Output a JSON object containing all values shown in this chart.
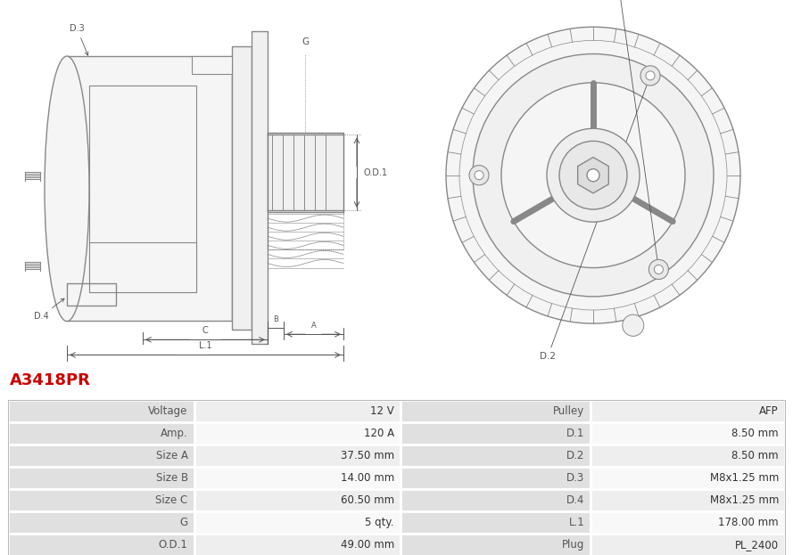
{
  "title": "A3418PR",
  "title_color": "#cc0000",
  "table_data": [
    [
      "Voltage",
      "12 V",
      "Pulley",
      "AFP"
    ],
    [
      "Amp.",
      "120 A",
      "D.1",
      "8.50 mm"
    ],
    [
      "Size A",
      "37.50 mm",
      "D.2",
      "8.50 mm"
    ],
    [
      "Size B",
      "14.00 mm",
      "D.3",
      "M8x1.25 mm"
    ],
    [
      "Size C",
      "60.50 mm",
      "D.4",
      "M8x1.25 mm"
    ],
    [
      "G",
      "5 qty.",
      "L.1",
      "178.00 mm"
    ],
    [
      "O.D.1",
      "49.00 mm",
      "Plug",
      "PL_2400"
    ]
  ],
  "header_bg": "#e0e0e0",
  "row_bg_odd": "#eeeeee",
  "row_bg_even": "#f8f8f8",
  "border_color": "#ffffff",
  "text_color_label": "#555555",
  "text_color_value": "#333333",
  "bg_color": "#ffffff",
  "gray": "#888888",
  "dark": "#555555"
}
